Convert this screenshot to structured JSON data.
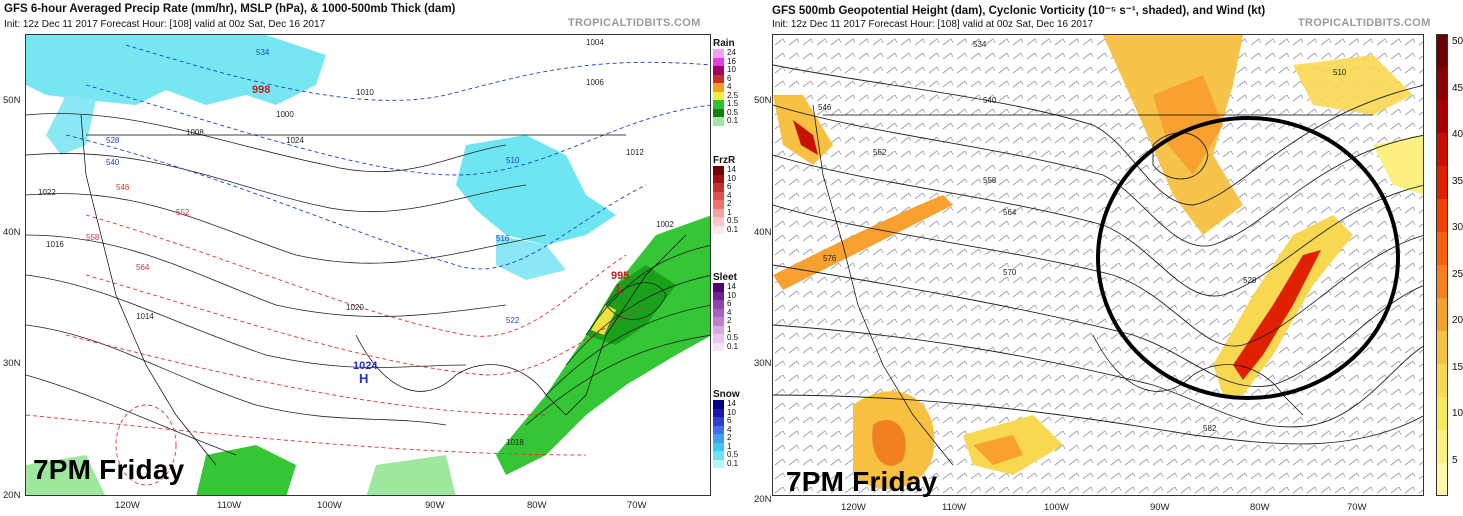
{
  "left": {
    "title": "GFS 6-hour Averaged Precip Rate (mm/hr), MSLP (hPa), & 1000-500mb Thick (dam)",
    "subtitle": "Init: 12z Dec 11 2017   Forecast Hour: [108]   valid at 00z Sat, Dec 16 2017",
    "credit": "TROPICALTIDBITS.COM",
    "overlay_label": "7PM Friday",
    "lat_labels": [
      "50N",
      "40N",
      "30N",
      "20N"
    ],
    "lon_labels": [
      "120W",
      "110W",
      "100W",
      "90W",
      "80W",
      "70W"
    ],
    "pressure_labels": [
      "998",
      "995",
      "1024"
    ],
    "pressure_centers": [
      "L",
      "L",
      "H"
    ],
    "isobar_labels": [
      "1004",
      "1006",
      "1008",
      "1010",
      "1012",
      "1014",
      "1016",
      "1018",
      "1020",
      "1022",
      "1024",
      "1000",
      "1002"
    ],
    "thickness_labels": [
      "528",
      "534",
      "540",
      "546",
      "552",
      "558",
      "564",
      "510",
      "516",
      "522"
    ],
    "legend": [
      {
        "title": "Rain",
        "values": [
          "24",
          "16",
          "10",
          "6",
          "4",
          "2.5",
          "1.5",
          "0.5",
          "0.1"
        ],
        "colors": [
          "#f5a0f0",
          "#e040e0",
          "#a00060",
          "#c83030",
          "#f0a020",
          "#f0f040",
          "#30c030",
          "#108010",
          "#a0e8a0"
        ]
      },
      {
        "title": "FrzR",
        "values": [
          "14",
          "10",
          "6",
          "4",
          "2",
          "1",
          "0.5",
          "0.1"
        ],
        "colors": [
          "#700000",
          "#a01010",
          "#c83030",
          "#e05050",
          "#f07070",
          "#f8a0a0",
          "#fcc8c8",
          "#ffe8e8"
        ]
      },
      {
        "title": "Sleet",
        "values": [
          "14",
          "10",
          "6",
          "4",
          "2",
          "1",
          "0.5",
          "0.1"
        ],
        "colors": [
          "#500070",
          "#702090",
          "#9040b0",
          "#a860c0",
          "#c080d0",
          "#d8a8e0",
          "#e8c8f0",
          "#f4e4f8"
        ]
      },
      {
        "title": "Snow",
        "values": [
          "14",
          "10",
          "6",
          "4",
          "2",
          "1",
          "0.5",
          "0.1"
        ],
        "colors": [
          "#000080",
          "#1818b0",
          "#3040d0",
          "#4070f0",
          "#40a0f0",
          "#40c8f0",
          "#70e0f8",
          "#b8f4fc"
        ]
      }
    ]
  },
  "right": {
    "title": "GFS 500mb Geopotential Height (dam), Cyclonic Vorticity (10⁻⁵ s⁻¹, shaded), and Wind (kt)",
    "subtitle": "Init: 12z Dec 11 2017   Forecast Hour: [108]   valid at 00z Sat, Dec 16 2017",
    "credit": "TROPICALTIDBITS.COM",
    "overlay_label": "7PM Friday",
    "lat_labels": [
      "50N",
      "40N",
      "30N",
      "20N"
    ],
    "lon_labels": [
      "120W",
      "110W",
      "100W",
      "90W",
      "80W",
      "70W"
    ],
    "height_labels": [
      "534",
      "540",
      "546",
      "552",
      "558",
      "564",
      "570",
      "576",
      "582",
      "510",
      "528"
    ],
    "colorbar": {
      "ticks": [
        "50",
        "45",
        "40",
        "35",
        "30",
        "25",
        "20",
        "15",
        "10",
        "5"
      ],
      "colors": [
        "#6a0000",
        "#8a0000",
        "#a80000",
        "#c81000",
        "#e02000",
        "#f04000",
        "#f86010",
        "#f88020",
        "#f8a030",
        "#f8c040",
        "#f8d850",
        "#f8e860",
        "#fcf080",
        "#fef8a8"
      ]
    },
    "annotation": "circle"
  }
}
